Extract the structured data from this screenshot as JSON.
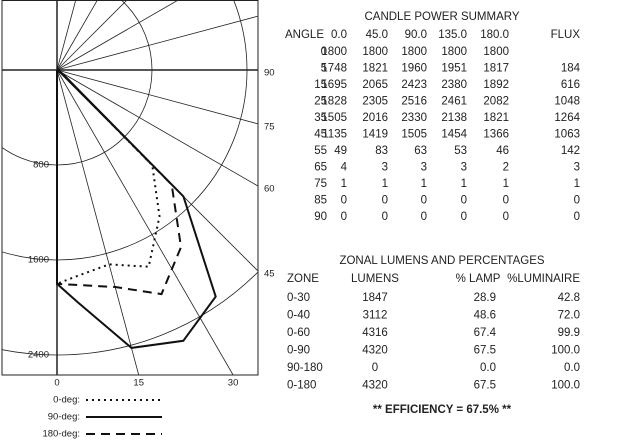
{
  "plot": {
    "right_labels": [
      "90",
      "75",
      "60",
      "45"
    ],
    "y_labels": [
      "800",
      "1600",
      "2400"
    ],
    "x_labels": [
      "0",
      "15",
      "30"
    ],
    "legend": [
      "0-deg:",
      "90-deg:",
      "180-deg:"
    ]
  },
  "candle_power": {
    "title": "CANDLE POWER SUMMARY",
    "headers": [
      "ANGLE",
      "0.0",
      "45.0",
      "90.0",
      "135.0",
      "180.0",
      "FLUX"
    ],
    "rows": [
      [
        "0",
        "1800",
        "1800",
        "1800",
        "1800",
        "1800"
      ],
      [
        "5",
        "1748",
        "1821",
        "1960",
        "1951",
        "1817",
        "184"
      ],
      [
        "15",
        "1695",
        "2065",
        "2423",
        "2380",
        "1892",
        "616"
      ],
      [
        "25",
        "1828",
        "2305",
        "2516",
        "2461",
        "2082",
        "1048"
      ],
      [
        "35",
        "1505",
        "2016",
        "2330",
        "2138",
        "1821",
        "1264"
      ],
      [
        "45",
        "1135",
        "1419",
        "1505",
        "1454",
        "1366",
        "1063"
      ],
      [
        "55",
        "49",
        "83",
        "63",
        "53",
        "46",
        "142"
      ],
      [
        "65",
        "4",
        "3",
        "3",
        "3",
        "2",
        "3"
      ],
      [
        "75",
        "1",
        "1",
        "1",
        "1",
        "1",
        "1"
      ],
      [
        "85",
        "0",
        "0",
        "0",
        "0",
        "0",
        "0"
      ],
      [
        "90",
        "0",
        "0",
        "0",
        "0",
        "0",
        "0"
      ]
    ]
  },
  "zonal": {
    "title": "ZONAL LUMENS AND PERCENTAGES",
    "headers": [
      "ZONE",
      "LUMENS",
      "% LAMP",
      "%LUMINAIRE"
    ],
    "rows": [
      [
        "0-30",
        "1847",
        "28.9",
        "42.8"
      ],
      [
        "0-40",
        "3112",
        "48.6",
        "72.0"
      ],
      [
        "0-60",
        "4316",
        "67.4",
        "99.9"
      ],
      [
        "0-90",
        "4320",
        "67.5",
        "100.0"
      ],
      [
        "90-180",
        "0",
        "0.0",
        "0.0"
      ],
      [
        "0-180",
        "4320",
        "67.5",
        "100.0"
      ]
    ]
  },
  "efficiency": "** EFFICIENCY = 67.5% **"
}
